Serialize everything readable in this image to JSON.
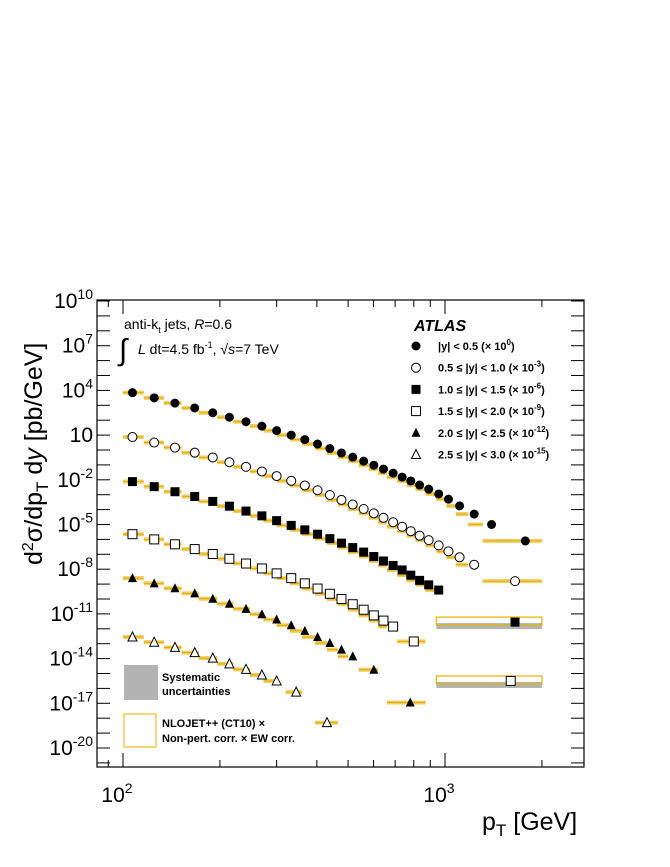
{
  "chart_data": {
    "type": "scatter",
    "xscale": "log",
    "yscale": "log",
    "xlabel": "p_T [GeV]",
    "ylabel": "d²σ/dp_T dy [pb/GeV]",
    "xlim": [
      80,
      3200
    ],
    "ylim_log10": [
      -21,
      10
    ],
    "x_ticks": [
      {
        "base": "10",
        "exp": "2"
      },
      {
        "base": "10",
        "exp": "3"
      }
    ],
    "y_ticks": [
      {
        "v": 10,
        "base": "10",
        "exp": "10"
      },
      {
        "v": 7,
        "base": "10",
        "exp": "7"
      },
      {
        "v": 4,
        "base": "10",
        "exp": "4"
      },
      {
        "v": 1,
        "base": "10",
        "exp": ""
      },
      {
        "v": -2,
        "base": "10",
        "exp": "-2"
      },
      {
        "v": -5,
        "base": "10",
        "exp": "-5"
      },
      {
        "v": -8,
        "base": "10",
        "exp": "-8"
      },
      {
        "v": -11,
        "base": "10",
        "exp": "-11"
      },
      {
        "v": -14,
        "base": "10",
        "exp": "-14"
      },
      {
        "v": -17,
        "base": "10",
        "exp": "-17"
      },
      {
        "v": -20,
        "base": "10",
        "exp": "-20"
      }
    ],
    "annotations": {
      "jets_a": "anti-k",
      "jets_sub": "t",
      "jets_b": " jets,  ",
      "r_label": "R",
      "r_value": "=0.6",
      "integral": "∫",
      "lumi_a": "L",
      "lumi_b": " dt=4.5 fb",
      "lumi_exp": "-1",
      "lumi_c": ",   ",
      "sqrt_sym": "√",
      "sqrt_s": "s",
      "energy": "=7 TeV",
      "atlas": "ATLAS"
    },
    "series": [
      {
        "name": "|y| < 0.5 (× 10⁰)",
        "marker": "filled-circle",
        "name_a": "|y| < 0.5 (× 10",
        "name_exp": "0",
        "name_b": ")",
        "x": [
          107,
          125,
          145,
          167,
          190,
          214,
          241,
          270,
          300,
          333,
          367,
          402,
          439,
          477,
          517,
          559,
          601,
          644,
          690,
          736,
          783,
          834,
          890,
          956,
          1025,
          1110,
          1232,
          1395,
          1776
        ],
        "log10y": [
          3.85,
          3.5,
          3.15,
          2.82,
          2.5,
          2.2,
          1.9,
          1.6,
          1.3,
          1.0,
          0.7,
          0.4,
          0.1,
          -0.2,
          -0.48,
          -0.75,
          -1.02,
          -1.28,
          -1.55,
          -1.82,
          -2.08,
          -2.35,
          -2.63,
          -2.95,
          -3.3,
          -3.75,
          -4.3,
          -5.0,
          -6.1
        ],
        "bin_lo": [
          100,
          116,
          134,
          152,
          172,
          196,
          220,
          248,
          273,
          300,
          330,
          360,
          395,
          430,
          465,
          500,
          540,
          580,
          620,
          660,
          710,
          760,
          810,
          870,
          940,
          1010,
          1080,
          1180,
          1310
        ],
        "bin_hi": [
          116,
          134,
          152,
          172,
          196,
          220,
          248,
          273,
          300,
          330,
          360,
          395,
          430,
          465,
          500,
          540,
          580,
          620,
          660,
          710,
          760,
          810,
          870,
          940,
          1010,
          1080,
          1180,
          1310,
          2000
        ]
      },
      {
        "name": "0.5 ≤ |y| < 1.0 (× 10⁻³)",
        "marker": "open-circle",
        "name_a": "0.5 ≤ |y| < 1.0 (× 10",
        "name_exp": "-3",
        "name_b": ")",
        "x": [
          107,
          125,
          145,
          167,
          190,
          214,
          241,
          270,
          300,
          333,
          367,
          402,
          439,
          477,
          517,
          559,
          601,
          644,
          690,
          736,
          783,
          834,
          890,
          956,
          1025,
          1110,
          1232,
          1650
        ],
        "log10y": [
          0.87,
          0.5,
          0.16,
          -0.18,
          -0.5,
          -0.82,
          -1.13,
          -1.44,
          -1.75,
          -2.07,
          -2.38,
          -2.7,
          -3.02,
          -3.35,
          -3.66,
          -3.96,
          -4.25,
          -4.55,
          -4.85,
          -5.15,
          -5.45,
          -5.75,
          -6.05,
          -6.4,
          -6.8,
          -7.2,
          -7.7,
          -8.8
        ],
        "bin_lo": [
          100,
          116,
          134,
          152,
          172,
          196,
          220,
          248,
          273,
          300,
          330,
          360,
          395,
          430,
          465,
          500,
          540,
          580,
          620,
          660,
          710,
          760,
          810,
          870,
          940,
          1010,
          1080,
          1310
        ],
        "bin_hi": [
          116,
          134,
          152,
          172,
          196,
          220,
          248,
          273,
          300,
          330,
          360,
          395,
          430,
          465,
          500,
          540,
          580,
          620,
          660,
          710,
          760,
          810,
          870,
          940,
          1010,
          1080,
          1180,
          2000
        ]
      },
      {
        "name": "1.0 ≤ |y| < 1.5 (× 10⁻⁶)",
        "marker": "filled-square",
        "name_a": "1.0 ≤ |y| < 1.5 (× 10",
        "name_exp": "-6",
        "name_b": ")",
        "x": [
          107,
          125,
          145,
          167,
          190,
          214,
          241,
          270,
          300,
          333,
          367,
          402,
          439,
          477,
          517,
          559,
          601,
          644,
          690,
          736,
          783,
          834,
          890,
          956,
          1650
        ],
        "log10y": [
          -2.12,
          -2.46,
          -2.8,
          -3.12,
          -3.45,
          -3.77,
          -4.1,
          -4.42,
          -4.74,
          -5.06,
          -5.36,
          -5.65,
          -5.95,
          -6.25,
          -6.55,
          -6.85,
          -7.15,
          -7.45,
          -7.75,
          -8.05,
          -8.4,
          -8.75,
          -9.05,
          -9.4,
          -11.55
        ],
        "bin_lo": [
          100,
          116,
          134,
          152,
          172,
          196,
          220,
          248,
          273,
          300,
          330,
          360,
          395,
          430,
          465,
          500,
          540,
          580,
          620,
          660,
          710,
          760,
          810,
          870,
          940
        ],
        "bin_hi": [
          116,
          134,
          152,
          172,
          196,
          220,
          248,
          273,
          300,
          330,
          360,
          395,
          430,
          465,
          500,
          540,
          580,
          620,
          660,
          710,
          760,
          810,
          870,
          940,
          2000
        ]
      },
      {
        "name": "1.5 ≤ |y| < 2.0 (× 10⁻⁹)",
        "marker": "open-square",
        "name_a": "1.5 ≤ |y| < 2.0 (× 10",
        "name_exp": "-9",
        "name_b": ")",
        "x": [
          107,
          125,
          145,
          167,
          190,
          214,
          241,
          270,
          300,
          333,
          367,
          402,
          439,
          477,
          517,
          559,
          601,
          644,
          690,
          800,
          1600
        ],
        "log10y": [
          -5.65,
          -6.0,
          -6.33,
          -6.65,
          -6.98,
          -7.3,
          -7.62,
          -7.95,
          -8.28,
          -8.6,
          -8.95,
          -9.3,
          -9.65,
          -10.0,
          -10.35,
          -10.72,
          -11.1,
          -11.45,
          -11.85,
          -12.85,
          -15.5
        ],
        "bin_lo": [
          100,
          116,
          134,
          152,
          172,
          196,
          220,
          248,
          273,
          300,
          330,
          360,
          395,
          430,
          465,
          500,
          540,
          580,
          620,
          710,
          940
        ],
        "bin_hi": [
          116,
          134,
          152,
          172,
          196,
          220,
          248,
          273,
          300,
          330,
          360,
          395,
          430,
          465,
          500,
          540,
          580,
          620,
          660,
          870,
          2000
        ]
      },
      {
        "name": "2.0 ≤ |y| < 2.5 (× 10⁻¹²)",
        "marker": "filled-triangle",
        "name_a": "2.0 ≤ |y| < 2.5 (× 10",
        "name_exp": "-12",
        "name_b": ")",
        "x": [
          107,
          125,
          145,
          167,
          190,
          214,
          241,
          270,
          300,
          333,
          367,
          402,
          439,
          477,
          517,
          601,
          780
        ],
        "log10y": [
          -8.6,
          -8.95,
          -9.28,
          -9.62,
          -9.98,
          -10.32,
          -10.66,
          -11.02,
          -11.38,
          -11.76,
          -12.14,
          -12.55,
          -12.95,
          -13.4,
          -13.85,
          -14.75,
          -16.95
        ],
        "bin_lo": [
          100,
          116,
          134,
          152,
          172,
          196,
          220,
          248,
          273,
          300,
          330,
          360,
          395,
          430,
          465,
          540,
          660
        ],
        "bin_hi": [
          116,
          134,
          152,
          172,
          196,
          220,
          248,
          273,
          300,
          330,
          360,
          395,
          430,
          465,
          500,
          620,
          870
        ]
      },
      {
        "name": "2.5 ≤ |y| < 3.0 (× 10⁻¹⁵)",
        "marker": "open-triangle",
        "name_a": "2.5 ≤ |y| < 3.0 (× 10",
        "name_exp": "-15",
        "name_b": ")",
        "x": [
          107,
          125,
          145,
          167,
          190,
          214,
          241,
          270,
          300,
          345,
          430
        ],
        "log10y": [
          -12.55,
          -12.9,
          -13.25,
          -13.6,
          -13.97,
          -14.35,
          -14.72,
          -15.1,
          -15.5,
          -16.25,
          -18.3
        ],
        "bin_lo": [
          100,
          116,
          134,
          152,
          172,
          196,
          220,
          248,
          273,
          320,
          395
        ],
        "bin_hi": [
          116,
          134,
          152,
          172,
          196,
          220,
          248,
          273,
          300,
          360,
          465
        ]
      }
    ],
    "legend_extra": {
      "syst_a": "Systematic",
      "syst_b": "uncertainties",
      "theory_a": "NLOJET++ (CT10) ×",
      "theory_b": "Non-pert. corr. × EW corr."
    },
    "colors": {
      "theory": "#f2c84b",
      "theory_edge": "#e6b400",
      "syst": "#b3b3b3",
      "marker": "#000000"
    }
  }
}
